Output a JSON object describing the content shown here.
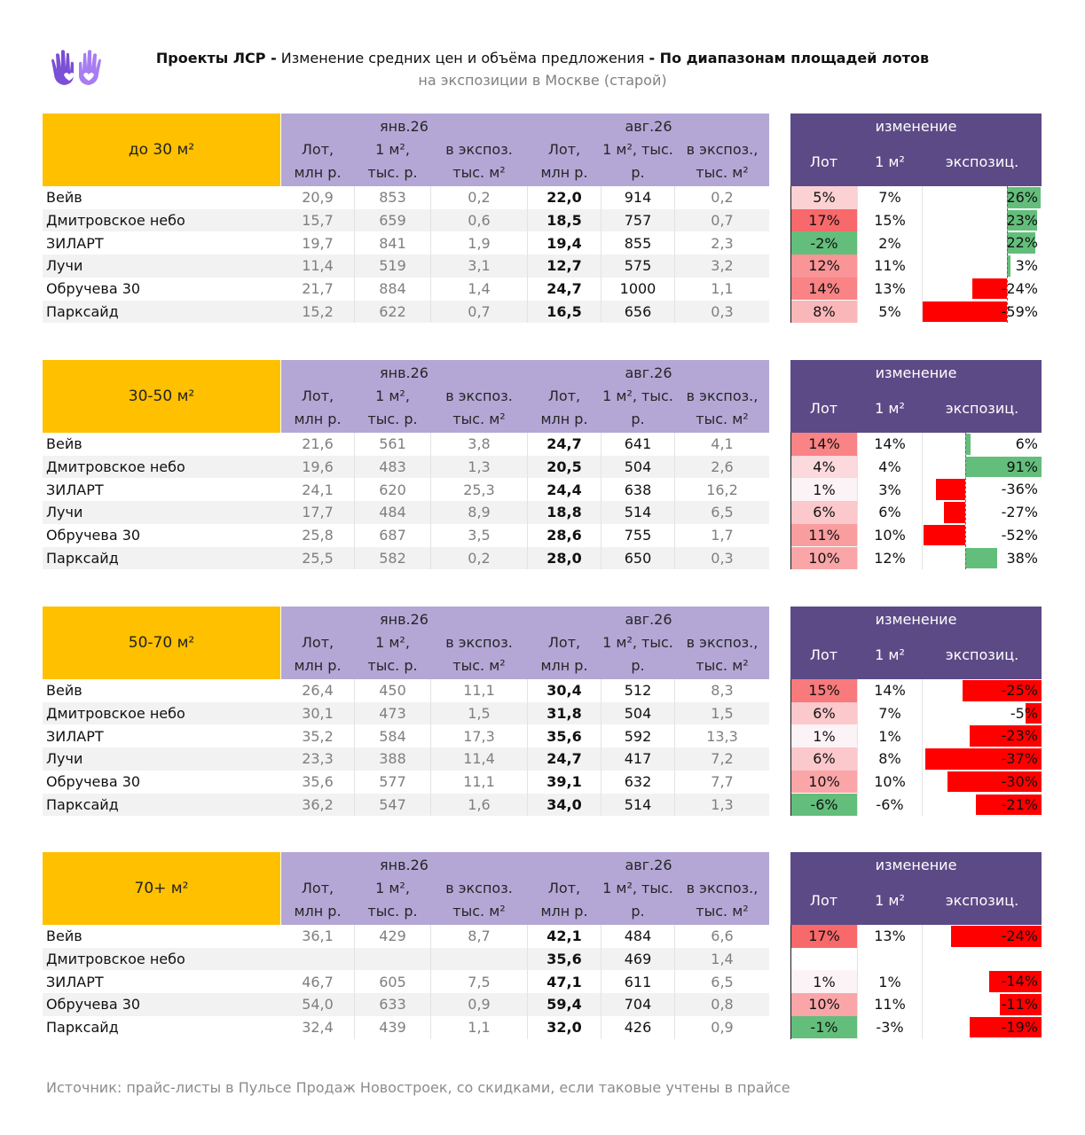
{
  "header": {
    "title_bold_1": "Проекты ЛСР -",
    "title_regular": " Изменение средних цен и объёма предложения ",
    "title_bold_2": "- По диапазонам площадей лотов",
    "subtitle": "на экспозиции в Москве (старой)"
  },
  "icon": "hands-heart-logo-icon",
  "columns": {
    "period_1": "янв.26",
    "period_2": "авг.26",
    "jan": [
      "Лот,\nмлн р.",
      "1 м²,\nтыс. р.",
      "в экспоз.\nтыс. м²"
    ],
    "aug": [
      "Лот,\nмлн р.",
      "1 м², тыс.\nр.",
      "в экспоз.,\nтыс. м²"
    ],
    "change_title": "изменение",
    "change": [
      "Лот",
      "1 м²",
      "экспозиц."
    ]
  },
  "colors": {
    "range_header": "#ffc000",
    "period_header": "#b4a7d6",
    "change_header": "#5c4a86",
    "positive_strong": "#f8696b",
    "negative_heat": "#63be7b",
    "exp_bar_negative": "#ff0000",
    "exp_bar_positive": "#63be7b"
  },
  "blocks": [
    {
      "range": "до 30 м²",
      "exp_axis": "right",
      "rows": [
        {
          "name": "Вейв",
          "j_lot": "20,9",
          "j_m2": "853",
          "j_exp": "0,2",
          "a_lot": "22,0",
          "a_m2": "914",
          "a_exp": "0,2",
          "c_lot": "5%",
          "c_m2": "7%",
          "c_exp": "26%",
          "lot_v": 5,
          "exp_v": 26,
          "exp_label_in_bar": true
        },
        {
          "name": "Дмитровское небо",
          "j_lot": "15,7",
          "j_m2": "659",
          "j_exp": "0,6",
          "a_lot": "18,5",
          "a_m2": "757",
          "a_exp": "0,7",
          "c_lot": "17%",
          "c_m2": "15%",
          "c_exp": "23%",
          "lot_v": 17,
          "exp_v": 23,
          "exp_label_in_bar": true
        },
        {
          "name": "ЗИЛАРТ",
          "j_lot": "19,7",
          "j_m2": "841",
          "j_exp": "1,9",
          "a_lot": "19,4",
          "a_m2": "855",
          "a_exp": "2,3",
          "c_lot": "-2%",
          "c_m2": "2%",
          "c_exp": "22%",
          "lot_v": -2,
          "exp_v": 22,
          "exp_label_in_bar": true
        },
        {
          "name": "Лучи",
          "j_lot": "11,4",
          "j_m2": "519",
          "j_exp": "3,1",
          "a_lot": "12,7",
          "a_m2": "575",
          "a_exp": "3,2",
          "c_lot": "12%",
          "c_m2": "11%",
          "c_exp": "3%",
          "lot_v": 12,
          "exp_v": 3,
          "exp_label_in_bar": false
        },
        {
          "name": "Обручева 30",
          "j_lot": "21,7",
          "j_m2": "884",
          "j_exp": "1,4",
          "a_lot": "24,7",
          "a_m2": "1000",
          "a_exp": "1,1",
          "c_lot": "14%",
          "c_m2": "13%",
          "c_exp": "-24%",
          "lot_v": 14,
          "exp_v": -24,
          "exp_label_in_bar": false
        },
        {
          "name": "Парксайд",
          "j_lot": "15,2",
          "j_m2": "622",
          "j_exp": "0,7",
          "a_lot": "16,5",
          "a_m2": "656",
          "a_exp": "0,3",
          "c_lot": "8%",
          "c_m2": "5%",
          "c_exp": "-59%",
          "lot_v": 8,
          "exp_v": -59,
          "exp_label_in_bar": false
        }
      ]
    },
    {
      "range": "30-50 м²",
      "exp_axis": "mid",
      "rows": [
        {
          "name": "Вейв",
          "j_lot": "21,6",
          "j_m2": "561",
          "j_exp": "3,8",
          "a_lot": "24,7",
          "a_m2": "641",
          "a_exp": "4,1",
          "c_lot": "14%",
          "c_m2": "14%",
          "c_exp": "6%",
          "lot_v": 14,
          "exp_v": 6
        },
        {
          "name": "Дмитровское небо",
          "j_lot": "19,6",
          "j_m2": "483",
          "j_exp": "1,3",
          "a_lot": "20,5",
          "a_m2": "504",
          "a_exp": "2,6",
          "c_lot": "4%",
          "c_m2": "4%",
          "c_exp": "91%",
          "lot_v": 4,
          "exp_v": 91
        },
        {
          "name": "ЗИЛАРТ",
          "j_lot": "24,1",
          "j_m2": "620",
          "j_exp": "25,3",
          "a_lot": "24,4",
          "a_m2": "638",
          "a_exp": "16,2",
          "c_lot": "1%",
          "c_m2": "3%",
          "c_exp": "-36%",
          "lot_v": 1,
          "exp_v": -36
        },
        {
          "name": "Лучи",
          "j_lot": "17,7",
          "j_m2": "484",
          "j_exp": "8,9",
          "a_lot": "18,8",
          "a_m2": "514",
          "a_exp": "6,5",
          "c_lot": "6%",
          "c_m2": "6%",
          "c_exp": "-27%",
          "lot_v": 6,
          "exp_v": -27
        },
        {
          "name": "Обручева 30",
          "j_lot": "25,8",
          "j_m2": "687",
          "j_exp": "3,5",
          "a_lot": "28,6",
          "a_m2": "755",
          "a_exp": "1,7",
          "c_lot": "11%",
          "c_m2": "10%",
          "c_exp": "-52%",
          "lot_v": 11,
          "exp_v": -52
        },
        {
          "name": "Парксайд",
          "j_lot": "25,5",
          "j_m2": "582",
          "j_exp": "0,2",
          "a_lot": "28,0",
          "a_m2": "650",
          "a_exp": "0,3",
          "c_lot": "10%",
          "c_m2": "12%",
          "c_exp": "38%",
          "lot_v": 10,
          "exp_v": 38
        }
      ]
    },
    {
      "range": "50-70 м²",
      "exp_axis": "right",
      "rows": [
        {
          "name": "Вейв",
          "j_lot": "26,4",
          "j_m2": "450",
          "j_exp": "11,1",
          "a_lot": "30,4",
          "a_m2": "512",
          "a_exp": "8,3",
          "c_lot": "15%",
          "c_m2": "14%",
          "c_exp": "-25%",
          "lot_v": 15,
          "exp_v": -25,
          "exp_label_in_bar": true
        },
        {
          "name": "Дмитровское небо",
          "j_lot": "30,1",
          "j_m2": "473",
          "j_exp": "1,5",
          "a_lot": "31,8",
          "a_m2": "504",
          "a_exp": "1,5",
          "c_lot": "6%",
          "c_m2": "7%",
          "c_exp": "-5%",
          "lot_v": 6,
          "exp_v": -5,
          "exp_label_in_bar": true
        },
        {
          "name": "ЗИЛАРТ",
          "j_lot": "35,2",
          "j_m2": "584",
          "j_exp": "17,3",
          "a_lot": "35,6",
          "a_m2": "592",
          "a_exp": "13,3",
          "c_lot": "1%",
          "c_m2": "1%",
          "c_exp": "-23%",
          "lot_v": 1,
          "exp_v": -23,
          "exp_label_in_bar": true
        },
        {
          "name": "Лучи",
          "j_lot": "23,3",
          "j_m2": "388",
          "j_exp": "11,4",
          "a_lot": "24,7",
          "a_m2": "417",
          "a_exp": "7,2",
          "c_lot": "6%",
          "c_m2": "8%",
          "c_exp": "-37%",
          "lot_v": 6,
          "exp_v": -37,
          "exp_label_in_bar": true
        },
        {
          "name": "Обручева 30",
          "j_lot": "35,6",
          "j_m2": "577",
          "j_exp": "11,1",
          "a_lot": "39,1",
          "a_m2": "632",
          "a_exp": "7,7",
          "c_lot": "10%",
          "c_m2": "10%",
          "c_exp": "-30%",
          "lot_v": 10,
          "exp_v": -30,
          "exp_label_in_bar": true
        },
        {
          "name": "Парксайд",
          "j_lot": "36,2",
          "j_m2": "547",
          "j_exp": "1,6",
          "a_lot": "34,0",
          "a_m2": "514",
          "a_exp": "1,3",
          "c_lot": "-6%",
          "c_m2": "-6%",
          "c_exp": "-21%",
          "lot_v": -6,
          "exp_v": -21,
          "exp_label_in_bar": true
        }
      ]
    },
    {
      "range": "70+ м²",
      "exp_axis": "right",
      "rows": [
        {
          "name": "Вейв",
          "j_lot": "36,1",
          "j_m2": "429",
          "j_exp": "8,7",
          "a_lot": "42,1",
          "a_m2": "484",
          "a_exp": "6,6",
          "c_lot": "17%",
          "c_m2": "13%",
          "c_exp": "-24%",
          "lot_v": 17,
          "exp_v": -24,
          "exp_label_in_bar": true
        },
        {
          "name": "Дмитровское небо",
          "j_lot": "",
          "j_m2": "",
          "j_exp": "",
          "a_lot": "35,6",
          "a_m2": "469",
          "a_exp": "1,4",
          "c_lot": "",
          "c_m2": "",
          "c_exp": "",
          "lot_v": null,
          "exp_v": null,
          "exp_label_in_bar": true
        },
        {
          "name": "ЗИЛАРТ",
          "j_lot": "46,7",
          "j_m2": "605",
          "j_exp": "7,5",
          "a_lot": "47,1",
          "a_m2": "611",
          "a_exp": "6,5",
          "c_lot": "1%",
          "c_m2": "1%",
          "c_exp": "-14%",
          "lot_v": 1,
          "exp_v": -14,
          "exp_label_in_bar": true
        },
        {
          "name": "Обручева 30",
          "j_lot": "54,0",
          "j_m2": "633",
          "j_exp": "0,9",
          "a_lot": "59,4",
          "a_m2": "704",
          "a_exp": "0,8",
          "c_lot": "10%",
          "c_m2": "11%",
          "c_exp": "-11%",
          "lot_v": 10,
          "exp_v": -11,
          "exp_label_in_bar": true
        },
        {
          "name": "Парксайд",
          "j_lot": "32,4",
          "j_m2": "439",
          "j_exp": "1,1",
          "a_lot": "32,0",
          "a_m2": "426",
          "a_exp": "0,9",
          "c_lot": "-1%",
          "c_m2": "-3%",
          "c_exp": "-19%",
          "lot_v": -1,
          "exp_v": -19,
          "exp_label_in_bar": true
        }
      ]
    }
  ],
  "footer": "Источник: прайс-листы в Пульсе Продаж Новостроек, со скидками, если таковые учтены в прайсе"
}
